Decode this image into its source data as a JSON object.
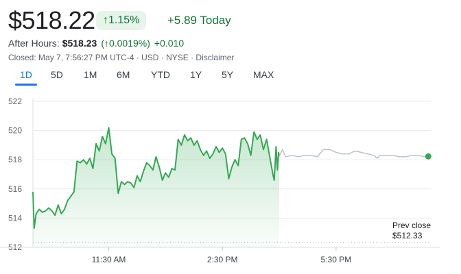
{
  "quote": {
    "price": "$518.22",
    "change_percent": "1.15%",
    "change_arrow": "↑",
    "change_today": "+5.89 Today",
    "after_hours_label": "After Hours:",
    "after_hours_price": "$518.23",
    "after_hours_pct": "(↑0.0019%)",
    "after_hours_change": "+0.010",
    "closed_text": "Closed: May 7, 7:56:27 PM UTC-4 · USD · NYSE · Disclaimer",
    "positive_color": "#137333",
    "positive_bg": "#e6f4ea"
  },
  "tabs": [
    "1D",
    "5D",
    "1M",
    "6M",
    "YTD",
    "1Y",
    "5Y",
    "MAX"
  ],
  "active_tab": "1D",
  "chart_data": {
    "type": "line",
    "ylim": [
      512,
      522
    ],
    "yticks": [
      512,
      514,
      516,
      518,
      520,
      522
    ],
    "xlim": [
      "09:30",
      "20:00"
    ],
    "xticks": [
      {
        "t": "11:30",
        "label": "11:30 AM"
      },
      {
        "t": "14:30",
        "label": "2:30 PM"
      },
      {
        "t": "17:30",
        "label": "5:30 PM"
      }
    ],
    "prev_close": {
      "value": 512.33,
      "label_line1": "Prev close",
      "label_line2": "$512.33"
    },
    "regular_color": "#34a853",
    "after_hours_color": "#bdc1c6",
    "series": [
      {
        "segment": "regular",
        "points": [
          [
            "09:30",
            515.8
          ],
          [
            "09:32",
            513.3
          ],
          [
            "09:35",
            514.3
          ],
          [
            "09:40",
            514.6
          ],
          [
            "09:45",
            514.4
          ],
          [
            "09:50",
            514.5
          ],
          [
            "09:55",
            514.7
          ],
          [
            "10:00",
            514.5
          ],
          [
            "10:05",
            514.2
          ],
          [
            "10:10",
            514.9
          ],
          [
            "10:15",
            514.3
          ],
          [
            "10:20",
            514.6
          ],
          [
            "10:25",
            515.2
          ],
          [
            "10:30",
            515.5
          ],
          [
            "10:35",
            515.8
          ],
          [
            "10:40",
            517.9
          ],
          [
            "10:45",
            517.8
          ],
          [
            "10:50",
            518.0
          ],
          [
            "10:55",
            517.7
          ],
          [
            "11:00",
            518.1
          ],
          [
            "11:05",
            517.4
          ],
          [
            "11:10",
            519.1
          ],
          [
            "11:15",
            518.6
          ],
          [
            "11:20",
            519.6
          ],
          [
            "11:25",
            519.1
          ],
          [
            "11:30",
            520.2
          ],
          [
            "11:35",
            518.4
          ],
          [
            "11:40",
            518.1
          ],
          [
            "11:45",
            515.7
          ],
          [
            "11:50",
            516.5
          ],
          [
            "11:55",
            516.3
          ],
          [
            "12:00",
            516.5
          ],
          [
            "12:05",
            516.4
          ],
          [
            "12:10",
            516.1
          ],
          [
            "12:15",
            516.9
          ],
          [
            "12:20",
            516.5
          ],
          [
            "12:25",
            517.2
          ],
          [
            "12:30",
            517.8
          ],
          [
            "12:35",
            517.6
          ],
          [
            "12:40",
            517.3
          ],
          [
            "12:45",
            518.2
          ],
          [
            "12:50",
            517.5
          ],
          [
            "12:55",
            516.6
          ],
          [
            "13:00",
            517.1
          ],
          [
            "13:05",
            516.8
          ],
          [
            "13:10",
            517.4
          ],
          [
            "13:15",
            517.3
          ],
          [
            "13:20",
            519.4
          ],
          [
            "13:25",
            519.0
          ],
          [
            "13:30",
            519.7
          ],
          [
            "13:35",
            519.3
          ],
          [
            "13:40",
            519.5
          ],
          [
            "13:45",
            519.0
          ],
          [
            "13:50",
            519.3
          ],
          [
            "13:55",
            518.7
          ],
          [
            "14:00",
            518.3
          ],
          [
            "14:05",
            518.6
          ],
          [
            "14:10",
            518.1
          ],
          [
            "14:15",
            518.4
          ],
          [
            "14:20",
            518.9
          ],
          [
            "14:25",
            518.5
          ],
          [
            "14:30",
            518.8
          ],
          [
            "14:35",
            518.4
          ],
          [
            "14:40",
            516.7
          ],
          [
            "14:45",
            517.5
          ],
          [
            "14:50",
            518.0
          ],
          [
            "14:55",
            517.6
          ],
          [
            "15:00",
            519.4
          ],
          [
            "15:05",
            519.5
          ],
          [
            "15:10",
            519.1
          ],
          [
            "15:15",
            518.3
          ],
          [
            "15:20",
            519.9
          ],
          [
            "15:25",
            519.4
          ],
          [
            "15:30",
            519.7
          ],
          [
            "15:35",
            518.7
          ],
          [
            "15:40",
            519.4
          ],
          [
            "15:45",
            518.2
          ],
          [
            "15:50",
            517.0
          ],
          [
            "15:52",
            516.6
          ],
          [
            "15:55",
            518.9
          ],
          [
            "15:57",
            517.3
          ],
          [
            "15:59",
            518.5
          ],
          [
            "16:00",
            518.22
          ]
        ]
      },
      {
        "segment": "after_hours",
        "points": [
          [
            "16:00",
            518.22
          ],
          [
            "16:05",
            518.7
          ],
          [
            "16:10",
            518.2
          ],
          [
            "16:20",
            518.3
          ],
          [
            "16:30",
            518.2
          ],
          [
            "16:40",
            518.3
          ],
          [
            "16:50",
            518.3
          ],
          [
            "17:00",
            518.2
          ],
          [
            "17:10",
            518.7
          ],
          [
            "17:20",
            518.7
          ],
          [
            "17:30",
            518.5
          ],
          [
            "17:40",
            518.4
          ],
          [
            "17:50",
            518.4
          ],
          [
            "18:00",
            518.6
          ],
          [
            "18:10",
            518.5
          ],
          [
            "18:20",
            518.4
          ],
          [
            "18:30",
            518.3
          ],
          [
            "18:35",
            518.1
          ],
          [
            "18:40",
            518.3
          ],
          [
            "18:50",
            518.3
          ],
          [
            "19:00",
            518.3
          ],
          [
            "19:10",
            518.2
          ],
          [
            "19:20",
            518.2
          ],
          [
            "19:30",
            518.3
          ],
          [
            "19:40",
            518.3
          ],
          [
            "19:50",
            518.2
          ],
          [
            "19:56",
            518.23
          ]
        ]
      }
    ]
  }
}
